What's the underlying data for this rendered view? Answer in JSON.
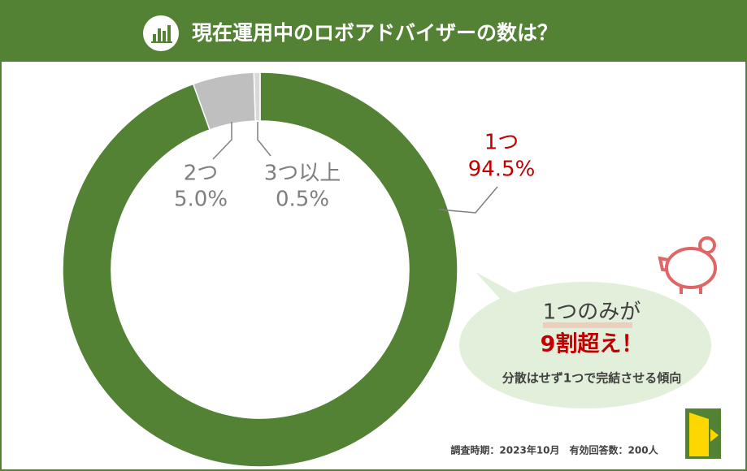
{
  "chart_data": {
    "type": "donut",
    "title": "現在運用中のロボアドバイザーの数は？",
    "categories": [
      "1つ",
      "2つ",
      "3つ以上"
    ],
    "values": [
      94.5,
      5.0,
      0.5
    ],
    "value_labels": [
      "94.5%",
      "5.0%",
      "0.5%"
    ],
    "colors": [
      "#548235",
      "#bfbfbf",
      "#d9d9d9"
    ],
    "annotations": [
      "1つのみが",
      "9割超え！",
      "分散はせず1つで完結させる傾向"
    ],
    "note": "調査時期：2023年10月　有効回答数：200人"
  }
}
